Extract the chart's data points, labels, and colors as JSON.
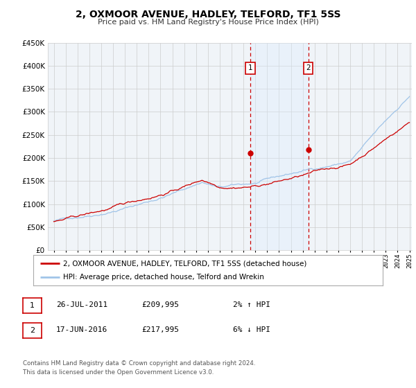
{
  "title": "2, OXMOOR AVENUE, HADLEY, TELFORD, TF1 5SS",
  "subtitle": "Price paid vs. HM Land Registry's House Price Index (HPI)",
  "legend_entry1": "2, OXMOOR AVENUE, HADLEY, TELFORD, TF1 5SS (detached house)",
  "legend_entry2": "HPI: Average price, detached house, Telford and Wrekin",
  "table_rows": [
    {
      "num": "1",
      "date": "26-JUL-2011",
      "price": "£209,995",
      "hpi": "2% ↑ HPI"
    },
    {
      "num": "2",
      "date": "17-JUN-2016",
      "price": "£217,995",
      "hpi": "6% ↓ HPI"
    }
  ],
  "footnote1": "Contains HM Land Registry data © Crown copyright and database right 2024.",
  "footnote2": "This data is licensed under the Open Government Licence v3.0.",
  "sale1_x": 2011.57,
  "sale1_y": 209995,
  "sale2_x": 2016.46,
  "sale2_y": 217995,
  "marker_color": "#cc0000",
  "line1_color": "#cc0000",
  "line2_color": "#a0c4e8",
  "shade_color": "#ddeeff",
  "vline_color": "#cc0000",
  "ylim": [
    0,
    450000
  ],
  "xlim_start": 1995,
  "xlim_end": 2025,
  "chart_bg": "#f0f4f8",
  "grid_color": "#cccccc",
  "fig_bg": "#ffffff"
}
